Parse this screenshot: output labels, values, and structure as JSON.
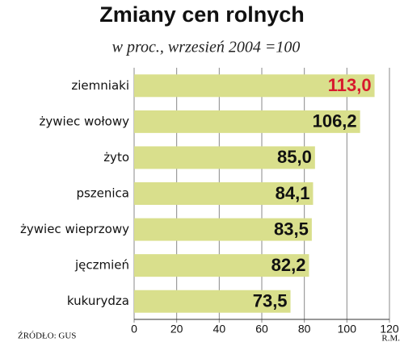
{
  "chart_data": {
    "type": "barh",
    "title": "Zmiany cen rolnych",
    "subtitle": "w proc., wrzesień 2004 =100",
    "categories": [
      "ziemniaki",
      "żywiec wołowy",
      "żyto",
      "pszenica",
      "żywiec wieprzowy",
      "jęczmień",
      "kukurydza"
    ],
    "values": [
      113.0,
      106.2,
      85.0,
      84.1,
      83.5,
      82.2,
      73.5
    ],
    "value_labels": [
      "113,0",
      "106,2",
      "85,0",
      "84,1",
      "83,5",
      "82,2",
      "73,5"
    ],
    "value_label_colors": [
      "#d7192d",
      "#111111",
      "#111111",
      "#111111",
      "#111111",
      "#111111",
      "#111111"
    ],
    "color": "#d9df8c",
    "xlim": [
      0,
      120
    ],
    "xticks": [
      0,
      20,
      40,
      60,
      80,
      100,
      120
    ],
    "grid": true,
    "source": "ŹRÓDŁO: GUS",
    "author": "R.M."
  }
}
